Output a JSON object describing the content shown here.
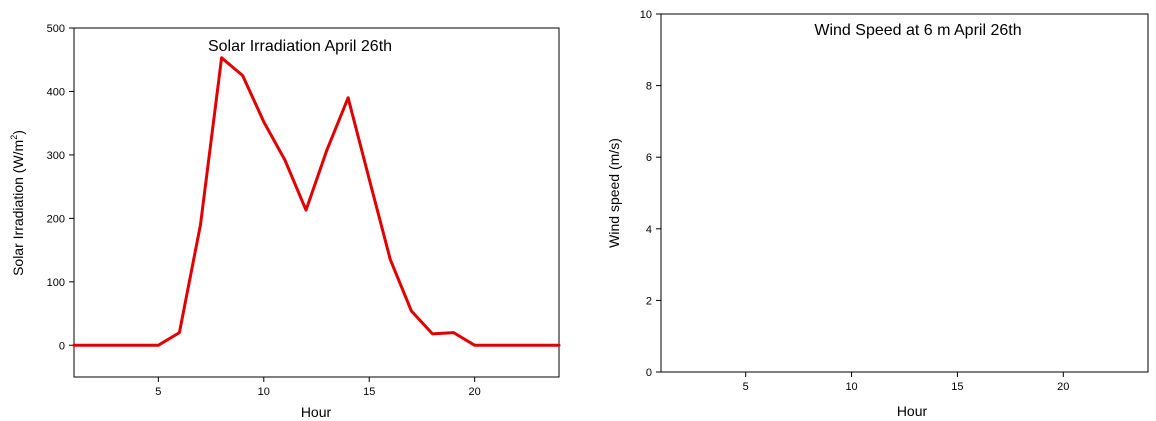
{
  "chart_data": [
    {
      "type": "line",
      "title": "Solar Irradiation April 26th",
      "xlabel": "Hour",
      "ylabel_main": "Solar Irradiation (W/m",
      "ylabel_sup": "2",
      "ylabel_end": ")",
      "xlim": [
        1,
        24
      ],
      "ylim": [
        -50,
        500
      ],
      "xticks": [
        5,
        10,
        15,
        20
      ],
      "yticks": [
        0,
        100,
        200,
        300,
        400,
        500
      ],
      "grid": false,
      "series": [
        {
          "color": "#e00000",
          "x": [
            1,
            2,
            3,
            4,
            5,
            6,
            7,
            8,
            9,
            10,
            11,
            12,
            13,
            14,
            15,
            16,
            17,
            18,
            19,
            20,
            21,
            22,
            23,
            24
          ],
          "y": [
            0,
            0,
            0,
            0,
            0,
            20,
            190,
            453,
            425,
            352,
            292,
            213,
            308,
            390,
            262,
            135,
            54,
            18,
            20,
            0,
            0,
            0,
            0,
            0
          ]
        }
      ]
    },
    {
      "type": "line",
      "title": "Wind Speed at 6 m April 26th",
      "xlabel": "Hour",
      "ylabel": "Wind speed (m/s)",
      "xlim": [
        1,
        24
      ],
      "ylim": [
        0,
        10
      ],
      "xticks": [
        5,
        10,
        15,
        20
      ],
      "yticks": [
        0,
        2,
        4,
        6,
        8,
        10
      ],
      "grid": false,
      "series": []
    }
  ]
}
